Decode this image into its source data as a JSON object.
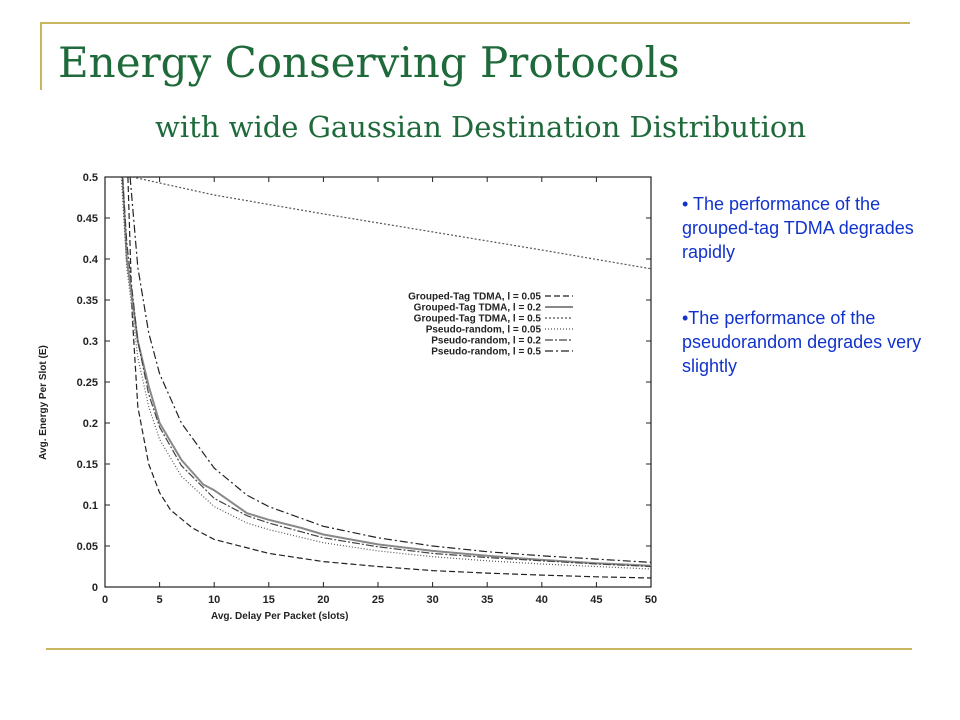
{
  "slide": {
    "title": "Energy Conserving Protocols",
    "subtitle": "with wide Gaussian Destination Distribution",
    "bullets": [
      "• The performance of the grouped-tag TDMA degrades rapidly",
      "•The performance of the pseudorandom degrades very slightly"
    ]
  },
  "chart_data": {
    "type": "line",
    "xlabel": "Avg. Delay Per Packet (slots)",
    "ylabel": "Avg. Energy Per Slot (E)",
    "xlim": [
      0,
      50
    ],
    "ylim": [
      0,
      0.5
    ],
    "xticks": [
      0,
      5,
      10,
      15,
      20,
      25,
      30,
      35,
      40,
      45,
      50
    ],
    "yticks": [
      0,
      0.05,
      0.1,
      0.15,
      0.2,
      0.25,
      0.3,
      0.35,
      0.4,
      0.45,
      0.5
    ],
    "grid": false,
    "legend_position": "center-right",
    "series": [
      {
        "name": "Grouped-Tag TDMA, l = 0.05",
        "dash": "6,3",
        "color": "#222222",
        "width": 1.2,
        "points": [
          [
            2.1,
            0.5
          ],
          [
            2.5,
            0.33
          ],
          [
            3,
            0.22
          ],
          [
            4,
            0.15
          ],
          [
            5,
            0.115
          ],
          [
            6,
            0.094
          ],
          [
            8,
            0.072
          ],
          [
            10,
            0.058
          ],
          [
            15,
            0.041
          ],
          [
            20,
            0.031
          ],
          [
            25,
            0.025
          ],
          [
            30,
            0.02
          ],
          [
            35,
            0.017
          ],
          [
            40,
            0.0145
          ],
          [
            45,
            0.0125
          ],
          [
            50,
            0.011
          ]
        ]
      },
      {
        "name": "Grouped-Tag TDMA, l =  0.2",
        "dash": "",
        "color": "#888888",
        "width": 2,
        "points": [
          [
            1.6,
            0.5
          ],
          [
            2,
            0.4
          ],
          [
            3,
            0.3
          ],
          [
            4,
            0.245
          ],
          [
            5,
            0.2
          ],
          [
            7,
            0.155
          ],
          [
            9,
            0.125
          ],
          [
            10,
            0.118
          ],
          [
            13,
            0.09
          ],
          [
            15,
            0.082
          ],
          [
            18,
            0.072
          ],
          [
            20,
            0.064
          ],
          [
            25,
            0.052
          ],
          [
            30,
            0.044
          ],
          [
            35,
            0.038
          ],
          [
            40,
            0.033
          ],
          [
            45,
            0.029
          ],
          [
            50,
            0.026
          ]
        ]
      },
      {
        "name": "Grouped-Tag TDMA, l =   0.5",
        "dash": "2,2",
        "color": "#555555",
        "width": 1.2,
        "points": [
          [
            2.5,
            0.5
          ],
          [
            10,
            0.478
          ],
          [
            20,
            0.455
          ],
          [
            30,
            0.433
          ],
          [
            40,
            0.411
          ],
          [
            50,
            0.388
          ]
        ]
      },
      {
        "name": "Pseudo-random, l = 0.05",
        "dash": "1,2",
        "color": "#555555",
        "width": 1.2,
        "points": [
          [
            1.5,
            0.5
          ],
          [
            2,
            0.39
          ],
          [
            3,
            0.28
          ],
          [
            4,
            0.22
          ],
          [
            5,
            0.18
          ],
          [
            7,
            0.135
          ],
          [
            10,
            0.098
          ],
          [
            13,
            0.078
          ],
          [
            15,
            0.07
          ],
          [
            20,
            0.054
          ],
          [
            25,
            0.044
          ],
          [
            30,
            0.037
          ],
          [
            35,
            0.032
          ],
          [
            40,
            0.028
          ],
          [
            45,
            0.025
          ],
          [
            50,
            0.022
          ]
        ]
      },
      {
        "name": "Pseudo-random, l =  0.2",
        "dash": "8,2,2,2",
        "color": "#444444",
        "width": 1.2,
        "points": [
          [
            1.6,
            0.5
          ],
          [
            2,
            0.42
          ],
          [
            3,
            0.3
          ],
          [
            4,
            0.235
          ],
          [
            5,
            0.195
          ],
          [
            7,
            0.148
          ],
          [
            10,
            0.108
          ],
          [
            13,
            0.087
          ],
          [
            15,
            0.078
          ],
          [
            20,
            0.06
          ],
          [
            25,
            0.049
          ],
          [
            30,
            0.041
          ],
          [
            35,
            0.036
          ],
          [
            40,
            0.032
          ],
          [
            45,
            0.028
          ],
          [
            50,
            0.025
          ]
        ]
      },
      {
        "name": "Pseudo-random, l =  0.5",
        "dash": "8,3,2,3",
        "color": "#222222",
        "width": 1.2,
        "points": [
          [
            2.3,
            0.5
          ],
          [
            3,
            0.39
          ],
          [
            4,
            0.31
          ],
          [
            5,
            0.26
          ],
          [
            7,
            0.2
          ],
          [
            10,
            0.145
          ],
          [
            13,
            0.112
          ],
          [
            15,
            0.098
          ],
          [
            20,
            0.074
          ],
          [
            25,
            0.06
          ],
          [
            30,
            0.05
          ],
          [
            35,
            0.043
          ],
          [
            40,
            0.038
          ],
          [
            45,
            0.034
          ],
          [
            50,
            0.03
          ]
        ]
      }
    ]
  }
}
